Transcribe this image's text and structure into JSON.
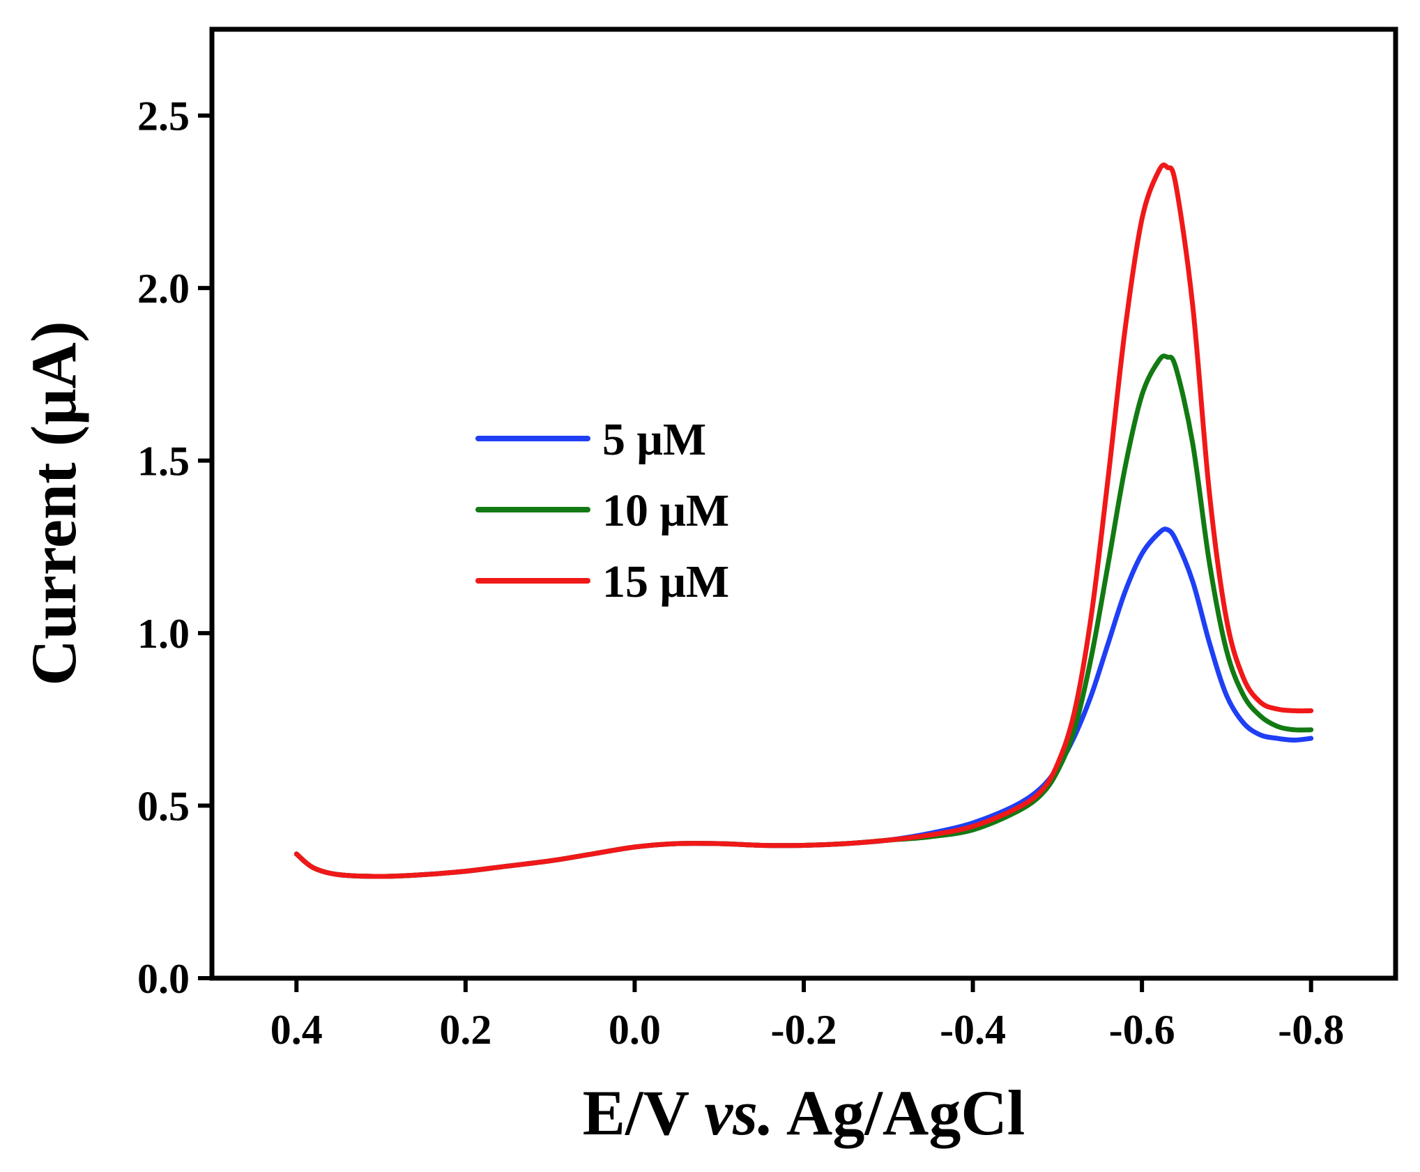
{
  "chart_data": {
    "type": "line",
    "xlabel_parts": [
      "E/V ",
      "vs.",
      " Ag/AgCl"
    ],
    "ylabel": "Current (μA)",
    "xlim": [
      0.5,
      -0.9
    ],
    "ylim": [
      0.0,
      2.75
    ],
    "x_ticks": [
      0.4,
      0.2,
      0.0,
      -0.2,
      -0.4,
      -0.6,
      -0.8
    ],
    "x_tick_labels": [
      "0.4",
      "0.2",
      "0.0",
      "-0.2",
      "-0.4",
      "-0.6",
      "-0.8"
    ],
    "y_ticks": [
      0.0,
      0.5,
      1.0,
      1.5,
      2.0,
      2.5
    ],
    "y_tick_labels": [
      "0.0",
      "0.5",
      "1.0",
      "1.5",
      "2.0",
      "2.5"
    ],
    "legend_position": "center-left",
    "x": [
      0.4,
      0.38,
      0.35,
      0.3,
      0.25,
      0.2,
      0.15,
      0.1,
      0.05,
      0.0,
      -0.05,
      -0.1,
      -0.15,
      -0.2,
      -0.25,
      -0.3,
      -0.35,
      -0.4,
      -0.45,
      -0.48,
      -0.5,
      -0.52,
      -0.54,
      -0.56,
      -0.58,
      -0.6,
      -0.62,
      -0.63,
      -0.64,
      -0.66,
      -0.68,
      -0.7,
      -0.72,
      -0.74,
      -0.76,
      -0.78,
      -0.8
    ],
    "series": [
      {
        "name": "5 μM",
        "color": "#1f3ff5",
        "values": [
          0.36,
          0.32,
          0.3,
          0.295,
          0.3,
          0.31,
          0.325,
          0.34,
          0.36,
          0.38,
          0.39,
          0.39,
          0.385,
          0.385,
          0.39,
          0.4,
          0.42,
          0.45,
          0.5,
          0.55,
          0.61,
          0.7,
          0.82,
          0.97,
          1.12,
          1.23,
          1.29,
          1.3,
          1.27,
          1.15,
          0.97,
          0.82,
          0.74,
          0.705,
          0.695,
          0.69,
          0.695
        ]
      },
      {
        "name": "10 μM",
        "color": "#127a12",
        "values": [
          0.36,
          0.32,
          0.3,
          0.295,
          0.3,
          0.31,
          0.325,
          0.34,
          0.36,
          0.38,
          0.39,
          0.39,
          0.385,
          0.385,
          0.39,
          0.4,
          0.41,
          0.43,
          0.48,
          0.53,
          0.6,
          0.72,
          0.93,
          1.2,
          1.48,
          1.69,
          1.79,
          1.8,
          1.77,
          1.55,
          1.2,
          0.95,
          0.82,
          0.76,
          0.73,
          0.72,
          0.72
        ]
      },
      {
        "name": "15 μM",
        "color": "#f01818",
        "values": [
          0.36,
          0.32,
          0.3,
          0.295,
          0.3,
          0.31,
          0.325,
          0.34,
          0.36,
          0.38,
          0.39,
          0.39,
          0.385,
          0.385,
          0.39,
          0.4,
          0.415,
          0.44,
          0.49,
          0.54,
          0.62,
          0.77,
          1.05,
          1.45,
          1.88,
          2.2,
          2.34,
          2.35,
          2.3,
          1.95,
          1.4,
          1.04,
          0.87,
          0.8,
          0.78,
          0.775,
          0.775
        ]
      }
    ]
  }
}
